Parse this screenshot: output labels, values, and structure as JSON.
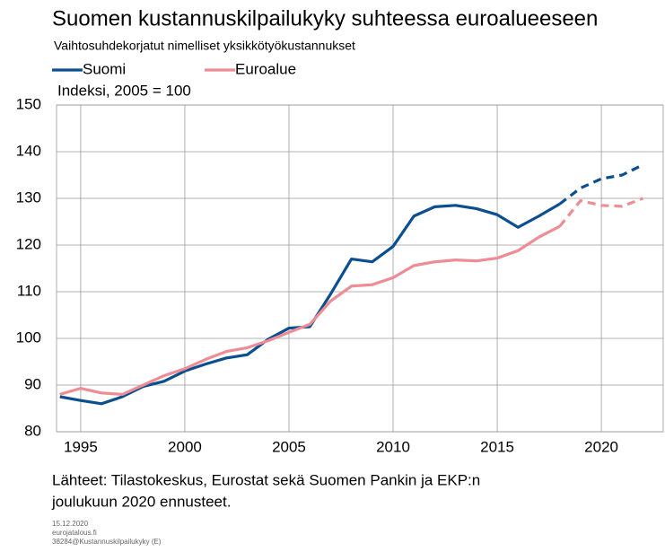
{
  "chart_data": {
    "type": "line",
    "title": "Suomen kustannuskilpailukyky suhteessa euroalueeseen",
    "subtitle": "Vaihtosuhdekorjatut nimelliset yksikkötyökustannukset",
    "y_label": "Indeksi, 2005 = 100",
    "source": [
      "Lähteet: Tilastokeskus, Eurostat sekä Suomen Pankin ja EKP:n",
      "joulukuun 2020 ennusteet."
    ],
    "footer": [
      "15.12.2020",
      "eurojatalous.fi",
      "38284@Kustannuskilpailukyky (E)"
    ],
    "x": [
      1994,
      1995,
      1996,
      1997,
      1998,
      1999,
      2000,
      2001,
      2002,
      2003,
      2004,
      2005,
      2006,
      2007,
      2008,
      2009,
      2010,
      2011,
      2012,
      2013,
      2014,
      2015,
      2016,
      2017,
      2018,
      2019,
      2020,
      2021,
      2022
    ],
    "dashed_from": 2018,
    "series": [
      {
        "name": "Suomi",
        "color": "#0b4f91",
        "values": [
          87.5,
          86.7,
          86,
          87.5,
          89.7,
          90.8,
          93,
          94.5,
          95.8,
          96.5,
          99.8,
          102.2,
          102.5,
          109.5,
          117,
          116.4,
          119.7,
          126.2,
          128.2,
          128.5,
          127.8,
          126.5,
          123.8,
          126.2,
          128.8,
          132.2,
          134.2,
          135,
          137.2
        ]
      },
      {
        "name": "Euroalue",
        "color": "#ee8c95",
        "values": [
          88,
          89.3,
          88.3,
          88,
          90,
          92,
          93.5,
          95.5,
          97.2,
          98,
          99.5,
          101.3,
          103,
          108,
          111.2,
          111.5,
          113,
          115.6,
          116.4,
          116.8,
          116.6,
          117.2,
          118.8,
          121.7,
          124,
          129.5,
          128.5,
          128.3,
          130
        ]
      }
    ],
    "xlim": [
      1993.84,
      2022.97
    ],
    "xticks": [
      1995,
      2000,
      2005,
      2010,
      2015,
      2020
    ],
    "ylim": [
      80,
      150
    ],
    "yticks": [
      80,
      90,
      100,
      110,
      120,
      130,
      140,
      150
    ],
    "grid": true
  }
}
